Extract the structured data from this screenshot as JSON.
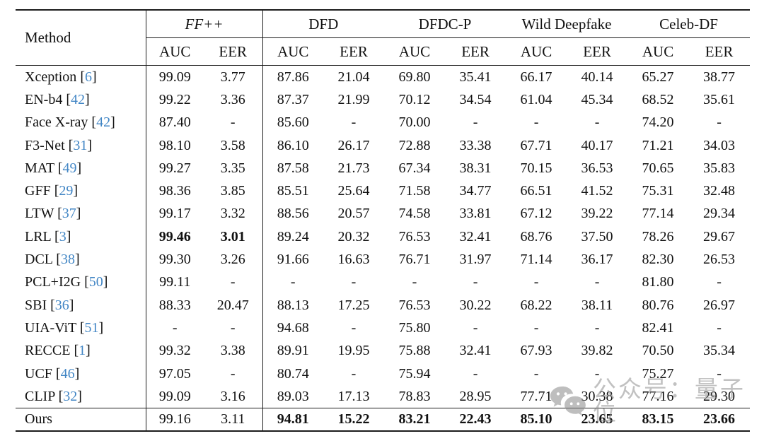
{
  "table": {
    "method_header": "Method",
    "groups": [
      {
        "label": "FF++",
        "italic": true
      },
      {
        "label": "DFD",
        "italic": false
      },
      {
        "label": "DFDC-P",
        "italic": false
      },
      {
        "label": "Wild Deepfake",
        "italic": false
      },
      {
        "label": "Celeb-DF",
        "italic": false
      }
    ],
    "sub_headers": [
      "AUC",
      "EER"
    ],
    "rows": [
      {
        "method": "Xception",
        "cite": "6",
        "values": [
          "99.09",
          "3.77",
          "87.86",
          "21.04",
          "69.80",
          "35.41",
          "66.17",
          "40.14",
          "65.27",
          "38.77"
        ],
        "bold": []
      },
      {
        "method": "EN-b4",
        "cite": "42",
        "values": [
          "99.22",
          "3.36",
          "87.37",
          "21.99",
          "70.12",
          "34.54",
          "61.04",
          "45.34",
          "68.52",
          "35.61"
        ],
        "bold": []
      },
      {
        "method": "Face X-ray",
        "cite": "42",
        "values": [
          "87.40",
          "-",
          "85.60",
          "-",
          "70.00",
          "-",
          "-",
          "-",
          "74.20",
          "-"
        ],
        "bold": []
      },
      {
        "method": "F3-Net",
        "cite": "31",
        "values": [
          "98.10",
          "3.58",
          "86.10",
          "26.17",
          "72.88",
          "33.38",
          "67.71",
          "40.17",
          "71.21",
          "34.03"
        ],
        "bold": []
      },
      {
        "method": "MAT",
        "cite": "49",
        "values": [
          "99.27",
          "3.35",
          "87.58",
          "21.73",
          "67.34",
          "38.31",
          "70.15",
          "36.53",
          "70.65",
          "35.83"
        ],
        "bold": []
      },
      {
        "method": "GFF",
        "cite": "29",
        "values": [
          "98.36",
          "3.85",
          "85.51",
          "25.64",
          "71.58",
          "34.77",
          "66.51",
          "41.52",
          "75.31",
          "32.48"
        ],
        "bold": []
      },
      {
        "method": "LTW",
        "cite": "37",
        "values": [
          "99.17",
          "3.32",
          "88.56",
          "20.57",
          "74.58",
          "33.81",
          "67.12",
          "39.22",
          "77.14",
          "29.34"
        ],
        "bold": []
      },
      {
        "method": "LRL",
        "cite": "3",
        "values": [
          "99.46",
          "3.01",
          "89.24",
          "20.32",
          "76.53",
          "32.41",
          "68.76",
          "37.50",
          "78.26",
          "29.67"
        ],
        "bold": [
          0,
          1
        ]
      },
      {
        "method": "DCL",
        "cite": "38",
        "values": [
          "99.30",
          "3.26",
          "91.66",
          "16.63",
          "76.71",
          "31.97",
          "71.14",
          "36.17",
          "82.30",
          "26.53"
        ],
        "bold": []
      },
      {
        "method": "PCL+I2G",
        "cite": "50",
        "values": [
          "99.11",
          "-",
          "-",
          "-",
          "-",
          "-",
          "-",
          "-",
          "81.80",
          "-"
        ],
        "bold": []
      },
      {
        "method": "SBI",
        "cite": "36",
        "values": [
          "88.33",
          "20.47",
          "88.13",
          "17.25",
          "76.53",
          "30.22",
          "68.22",
          "38.11",
          "80.76",
          "26.97"
        ],
        "bold": []
      },
      {
        "method": "UIA-ViT",
        "cite": "51",
        "values": [
          "-",
          "-",
          "94.68",
          "-",
          "75.80",
          "-",
          "-",
          "-",
          "82.41",
          "-"
        ],
        "bold": []
      },
      {
        "method": "RECCE",
        "cite": "1",
        "values": [
          "99.32",
          "3.38",
          "89.91",
          "19.95",
          "75.88",
          "32.41",
          "67.93",
          "39.82",
          "70.50",
          "35.34"
        ],
        "bold": []
      },
      {
        "method": "UCF",
        "cite": "46",
        "values": [
          "97.05",
          "-",
          "80.74",
          "-",
          "75.94",
          "-",
          "-",
          "-",
          "75.27",
          "-"
        ],
        "bold": []
      },
      {
        "method": "CLIP",
        "cite": "32",
        "values": [
          "99.09",
          "3.16",
          "89.03",
          "17.13",
          "78.83",
          "28.95",
          "77.71",
          "30.38",
          "77.16",
          "29.30"
        ],
        "bold": []
      },
      {
        "method": "Ours",
        "cite": null,
        "values": [
          "99.16",
          "3.11",
          "94.81",
          "15.22",
          "83.21",
          "22.43",
          "85.10",
          "23.65",
          "83.15",
          "23.66"
        ],
        "bold": [
          2,
          3,
          4,
          5,
          6,
          7,
          8,
          9
        ],
        "last": true
      }
    ]
  },
  "watermark": {
    "icon": "wechat-icon",
    "text": "公众号：量子位",
    "color": "#8f8f8f"
  },
  "colors": {
    "citation_link": "#4286c5",
    "rule": "#1c1c1c",
    "background": "#ffffff"
  }
}
